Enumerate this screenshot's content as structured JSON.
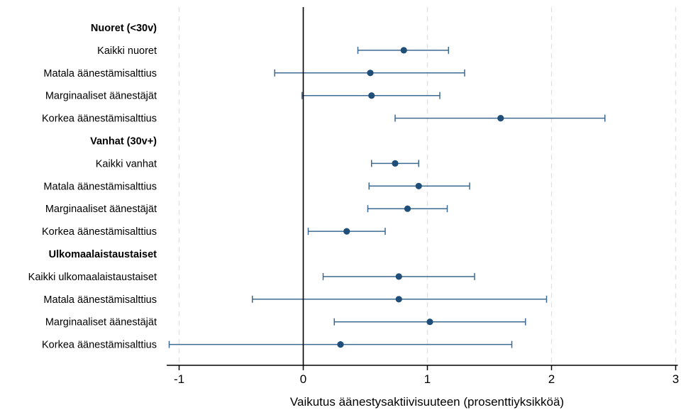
{
  "chart_data": {
    "type": "scatter",
    "subtype": "coefficient-plot-with-confidence-intervals",
    "title": "",
    "xlabel": "Vaikutus äänestysaktiivisuuteen (prosenttiyksikköä)",
    "ylabel": "",
    "xlim": [
      -1.1,
      3.0
    ],
    "xticks": [
      -1,
      0,
      1,
      2,
      3
    ],
    "xtick_labels": [
      "-1",
      "0",
      "1",
      "2",
      "3"
    ],
    "reference_line_x": 0,
    "grid": "vertical dashed at x ticks",
    "legend": "none",
    "colors": {
      "marker": "#1f4e79",
      "ci": "#3e6a91",
      "grid": "#e2e2e2",
      "axis": "#000000"
    },
    "rows": [
      {
        "label": "Nuoret (<30v)",
        "group": true
      },
      {
        "label": "Kaikki nuoret",
        "estimate": 0.81,
        "ci": [
          0.44,
          1.17
        ]
      },
      {
        "label": "Matala äänestämisalttius",
        "estimate": 0.54,
        "ci": [
          -0.23,
          1.3
        ]
      },
      {
        "label": "Marginaaliset äänestäjät",
        "estimate": 0.55,
        "ci": [
          -0.01,
          1.1
        ]
      },
      {
        "label": "Korkea äänestämisalttius",
        "estimate": 1.59,
        "ci": [
          0.74,
          2.43
        ]
      },
      {
        "label": "Vanhat (30v+)",
        "group": true
      },
      {
        "label": "Kaikki vanhat",
        "estimate": 0.74,
        "ci": [
          0.55,
          0.93
        ]
      },
      {
        "label": "Matala äänestämisalttius",
        "estimate": 0.93,
        "ci": [
          0.53,
          1.34
        ]
      },
      {
        "label": "Marginaaliset äänestäjät",
        "estimate": 0.84,
        "ci": [
          0.52,
          1.16
        ]
      },
      {
        "label": "Korkea äänestämisalttius",
        "estimate": 0.35,
        "ci": [
          0.04,
          0.66
        ]
      },
      {
        "label": "Ulkomaalaistaustaiset",
        "group": true
      },
      {
        "label": "Kaikki ulkomaalaistaustaiset",
        "estimate": 0.77,
        "ci": [
          0.16,
          1.38
        ]
      },
      {
        "label": "Matala äänestämisalttius",
        "estimate": 0.77,
        "ci": [
          -0.41,
          1.96
        ]
      },
      {
        "label": "Marginaaliset äänestäjät",
        "estimate": 1.02,
        "ci": [
          0.25,
          1.79
        ]
      },
      {
        "label": "Korkea äänestämisalttius",
        "estimate": 0.3,
        "ci": [
          -1.08,
          1.68
        ]
      }
    ]
  }
}
